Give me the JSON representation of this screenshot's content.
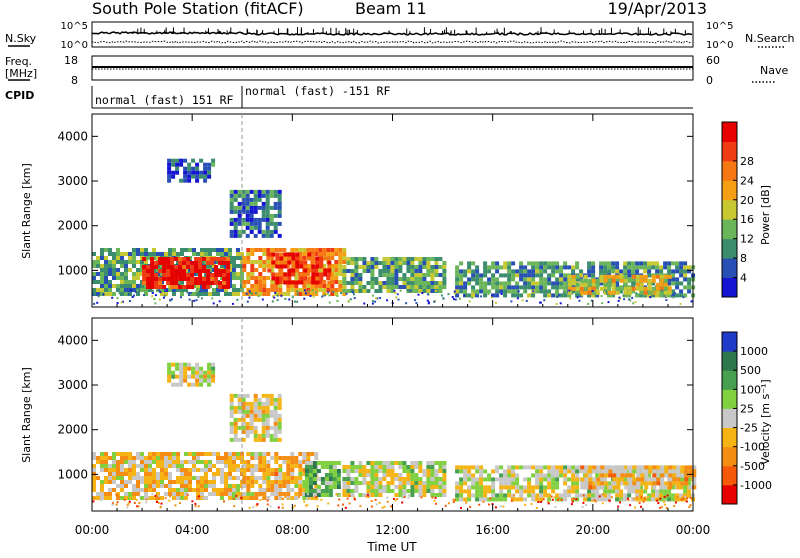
{
  "header": {
    "station": "South Pole Station (fitACF)",
    "beam": "Beam 11",
    "date": "19/Apr/2013"
  },
  "top_panels": {
    "nsky_label": "N.Sky",
    "nsearch_label": "N.Search",
    "freq_label_line1": "Freq.",
    "freq_label_line2": "[MHz]",
    "nave_label": "Nave",
    "cpid_label": "CPID",
    "noise_tick_high": "10^5",
    "noise_tick_low": "10^0",
    "freq_tick_high": "18",
    "freq_tick_low": "8",
    "nave_tick_high": "60",
    "nave_tick_low": "0",
    "cpid_segments": [
      {
        "label": "normal (fast) 151 RF",
        "start_hour": 0,
        "end_hour": 6
      },
      {
        "label": "normal (fast) -151 RF",
        "start_hour": 6,
        "end_hour": 24
      }
    ]
  },
  "axes": {
    "xlabel": "Time UT",
    "ylabel": "Slant Range [km]",
    "x_ticks": [
      "00:00",
      "04:00",
      "08:00",
      "12:00",
      "16:00",
      "20:00",
      "00:00"
    ],
    "y_ticks": [
      "1000",
      "2000",
      "3000",
      "4000"
    ]
  },
  "colorbars": {
    "power": {
      "label": "Power [dB]",
      "ticks": [
        "4",
        "8",
        "12",
        "16",
        "20",
        "24",
        "28"
      ],
      "colors": [
        "#1414d2",
        "#2850b4",
        "#3c8c6e",
        "#6ab45a",
        "#c8c832",
        "#f5a014",
        "#f57814",
        "#f03c14",
        "#e60000"
      ]
    },
    "velocity": {
      "label": "Velocity [m s⁻¹]",
      "ticks": [
        "1000",
        "500",
        "100",
        "25",
        "-25",
        "-100",
        "-500",
        "-1000"
      ],
      "colors": [
        "#1e3cc8",
        "#2e7850",
        "#46a050",
        "#80d040",
        "#c8c8c8",
        "#f5b414",
        "#f58c14",
        "#f55a0a",
        "#e60000"
      ]
    }
  },
  "chart_data": [
    {
      "type": "heatmap",
      "title": "Power",
      "xlabel": "Time UT",
      "ylabel": "Slant Range [km]",
      "xlim": [
        0,
        24
      ],
      "ylim": [
        180,
        4500
      ],
      "colorbar": "Power [dB]",
      "clim": [
        0,
        30
      ],
      "regions": [
        {
          "t0": 0.0,
          "t1": 6.0,
          "r0": 500,
          "r1": 1500,
          "value": 10
        },
        {
          "t0": 2.0,
          "t1": 5.5,
          "r0": 650,
          "r1": 1300,
          "value": 28
        },
        {
          "t0": 6.0,
          "t1": 10.0,
          "r0": 500,
          "r1": 1500,
          "value": 20
        },
        {
          "t0": 7.0,
          "t1": 9.5,
          "r0": 700,
          "r1": 1400,
          "value": 26
        },
        {
          "t0": 10.0,
          "t1": 14.0,
          "r0": 500,
          "r1": 1300,
          "value": 10
        },
        {
          "t0": 14.5,
          "t1": 24.0,
          "r0": 400,
          "r1": 1200,
          "value": 9
        },
        {
          "t0": 19.0,
          "t1": 23.0,
          "r0": 500,
          "r1": 900,
          "value": 16
        },
        {
          "t0": 3.0,
          "t1": 4.8,
          "r0": 3000,
          "r1": 3500,
          "value": 5
        },
        {
          "t0": 5.5,
          "t1": 7.5,
          "r0": 1800,
          "r1": 2800,
          "value": 6
        }
      ]
    },
    {
      "type": "heatmap",
      "title": "Velocity",
      "xlabel": "Time UT",
      "ylabel": "Slant Range [km]",
      "xlim": [
        0,
        24
      ],
      "ylim": [
        180,
        4500
      ],
      "colorbar": "Velocity [m s⁻¹]",
      "clim": [
        -1000,
        1000
      ],
      "regions": [
        {
          "t0": 0.0,
          "t1": 6.0,
          "r0": 500,
          "r1": 1500,
          "value": -150
        },
        {
          "t0": 6.0,
          "t1": 9.0,
          "r0": 500,
          "r1": 1500,
          "value": -200
        },
        {
          "t0": 8.5,
          "t1": 9.8,
          "r0": 500,
          "r1": 1300,
          "value": 400
        },
        {
          "t0": 10.0,
          "t1": 14.0,
          "r0": 500,
          "r1": 1300,
          "value": 50
        },
        {
          "t0": 14.5,
          "t1": 24.0,
          "r0": 400,
          "r1": 1200,
          "value": 30
        },
        {
          "t0": 19.5,
          "t1": 24.0,
          "r0": 700,
          "r1": 1200,
          "value": -250
        },
        {
          "t0": 3.0,
          "t1": 4.8,
          "r0": 3000,
          "r1": 3500,
          "value": 0
        },
        {
          "t0": 5.5,
          "t1": 7.5,
          "r0": 1800,
          "r1": 2800,
          "value": -80
        }
      ]
    }
  ]
}
